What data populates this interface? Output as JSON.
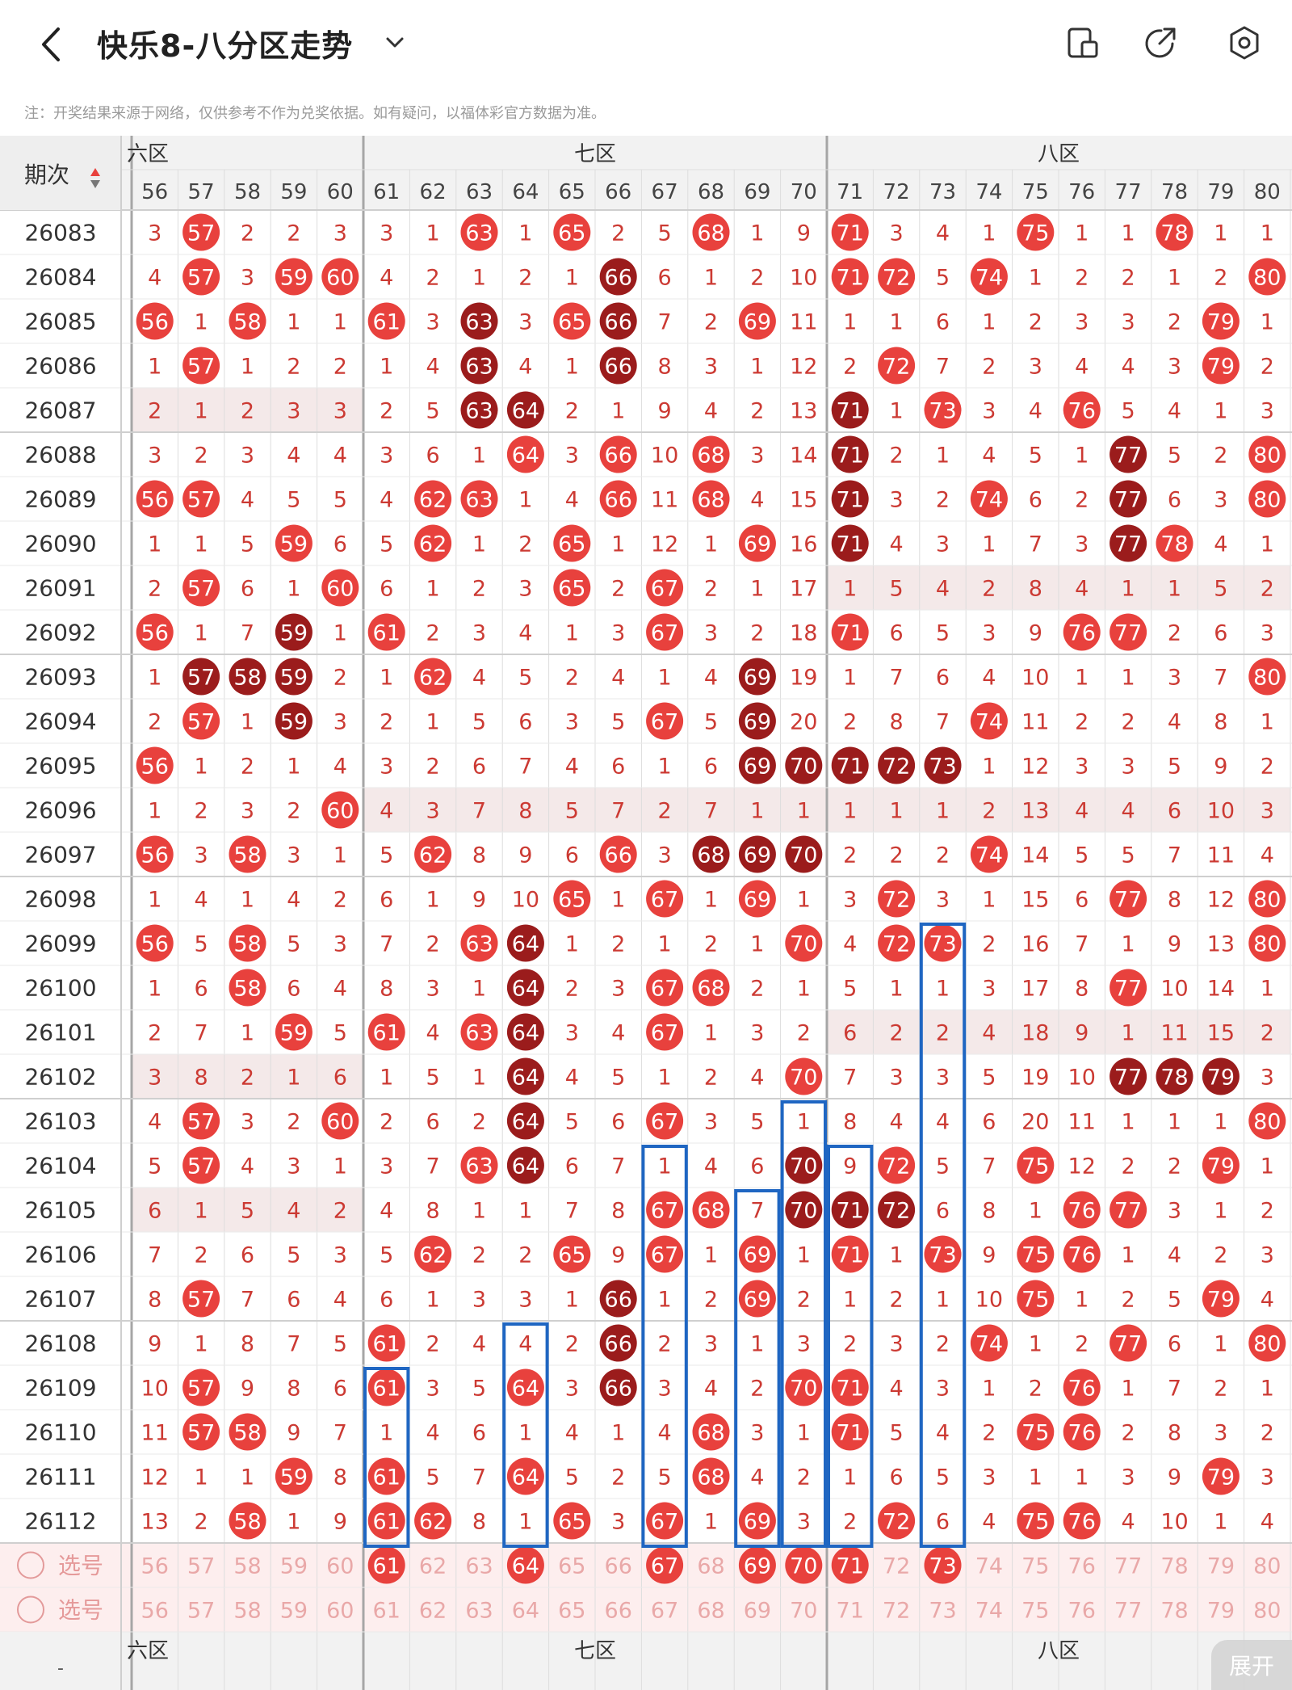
{
  "header": {
    "title": "快乐8-八分区走势"
  },
  "note": "注：开奖结果来源于网络，仅供参考不作为兑奖依据。如有疑问，以福体彩官方数据为准。",
  "table": {
    "period_header": "期次",
    "zones": [
      {
        "label": "六区",
        "display": "六区"
      },
      {
        "label": "七区",
        "display": "七区"
      },
      {
        "label": "八区",
        "display": "八区"
      }
    ],
    "columns": [
      "56",
      "57",
      "58",
      "59",
      "60",
      "61",
      "62",
      "63",
      "64",
      "65",
      "66",
      "67",
      "68",
      "69",
      "70",
      "71",
      "72",
      "73",
      "74",
      "75",
      "76",
      "77",
      "78",
      "79",
      "80"
    ],
    "periods": [
      "26083",
      "26084",
      "26085",
      "26086",
      "26087",
      "26088",
      "26089",
      "26090",
      "26091",
      "26092",
      "26093",
      "26094",
      "26095",
      "26096",
      "26097",
      "26098",
      "26099",
      "26100",
      "26101",
      "26102",
      "26103",
      "26104",
      "26105",
      "26106",
      "26107",
      "26108",
      "26109",
      "26110",
      "26111",
      "26112"
    ],
    "rows": [
      [
        "3",
        "57",
        "2",
        "2",
        "3",
        "3",
        "1",
        "63",
        "1",
        "65",
        "2",
        "5",
        "68",
        "1",
        "9",
        "71",
        "3",
        "4",
        "1",
        "75",
        "1",
        "1",
        "78",
        "1",
        "1"
      ],
      [
        "4",
        "57",
        "3",
        "59",
        "60",
        "4",
        "2",
        "1",
        "2",
        "1",
        "66",
        "6",
        "1",
        "2",
        "10",
        "71",
        "72",
        "5",
        "74",
        "1",
        "2",
        "2",
        "1",
        "2",
        "80"
      ],
      [
        "56",
        "1",
        "58",
        "1",
        "1",
        "61",
        "3",
        "63",
        "3",
        "65",
        "66",
        "7",
        "2",
        "69",
        "11",
        "1",
        "1",
        "6",
        "1",
        "2",
        "3",
        "3",
        "2",
        "79",
        "1"
      ],
      [
        "1",
        "57",
        "1",
        "2",
        "2",
        "1",
        "4",
        "63",
        "4",
        "1",
        "66",
        "8",
        "3",
        "1",
        "12",
        "2",
        "72",
        "7",
        "2",
        "3",
        "4",
        "4",
        "3",
        "79",
        "2"
      ],
      [
        "2",
        "1",
        "2",
        "3",
        "3",
        "2",
        "5",
        "63",
        "64",
        "2",
        "1",
        "9",
        "4",
        "2",
        "13",
        "71",
        "1",
        "73",
        "3",
        "4",
        "76",
        "5",
        "4",
        "1",
        "3"
      ],
      [
        "3",
        "2",
        "3",
        "4",
        "4",
        "3",
        "6",
        "1",
        "64",
        "3",
        "66",
        "10",
        "68",
        "3",
        "14",
        "71",
        "2",
        "1",
        "4",
        "5",
        "1",
        "77",
        "5",
        "2",
        "80"
      ],
      [
        "56",
        "57",
        "4",
        "5",
        "5",
        "4",
        "62",
        "63",
        "1",
        "4",
        "66",
        "11",
        "68",
        "4",
        "15",
        "71",
        "3",
        "2",
        "74",
        "6",
        "2",
        "77",
        "6",
        "3",
        "80"
      ],
      [
        "1",
        "1",
        "5",
        "59",
        "6",
        "5",
        "62",
        "1",
        "2",
        "65",
        "1",
        "12",
        "1",
        "69",
        "16",
        "71",
        "4",
        "3",
        "1",
        "7",
        "3",
        "77",
        "78",
        "4",
        "1"
      ],
      [
        "2",
        "57",
        "6",
        "1",
        "60",
        "6",
        "1",
        "2",
        "3",
        "65",
        "2",
        "67",
        "2",
        "1",
        "17",
        "1",
        "5",
        "4",
        "2",
        "8",
        "4",
        "1",
        "1",
        "5",
        "2"
      ],
      [
        "56",
        "1",
        "7",
        "59",
        "1",
        "61",
        "2",
        "3",
        "4",
        "1",
        "3",
        "67",
        "3",
        "2",
        "18",
        "71",
        "6",
        "5",
        "3",
        "9",
        "76",
        "77",
        "2",
        "6",
        "3"
      ],
      [
        "1",
        "57",
        "58",
        "59",
        "2",
        "1",
        "62",
        "4",
        "5",
        "2",
        "4",
        "1",
        "4",
        "69",
        "19",
        "1",
        "7",
        "6",
        "4",
        "10",
        "1",
        "1",
        "3",
        "7",
        "80"
      ],
      [
        "2",
        "57",
        "1",
        "59",
        "3",
        "2",
        "1",
        "5",
        "6",
        "3",
        "5",
        "67",
        "5",
        "69",
        "20",
        "2",
        "8",
        "7",
        "74",
        "11",
        "2",
        "2",
        "4",
        "8",
        "1"
      ],
      [
        "56",
        "1",
        "2",
        "1",
        "4",
        "3",
        "2",
        "6",
        "7",
        "4",
        "6",
        "1",
        "6",
        "69",
        "70",
        "71",
        "72",
        "73",
        "1",
        "12",
        "3",
        "3",
        "5",
        "9",
        "2"
      ],
      [
        "1",
        "2",
        "3",
        "2",
        "60",
        "4",
        "3",
        "7",
        "8",
        "5",
        "7",
        "2",
        "7",
        "1",
        "1",
        "1",
        "1",
        "1",
        "2",
        "13",
        "4",
        "4",
        "6",
        "10",
        "3"
      ],
      [
        "56",
        "3",
        "58",
        "3",
        "1",
        "5",
        "62",
        "8",
        "9",
        "6",
        "66",
        "3",
        "68",
        "69",
        "70",
        "2",
        "2",
        "2",
        "74",
        "14",
        "5",
        "5",
        "7",
        "11",
        "4"
      ],
      [
        "1",
        "4",
        "1",
        "4",
        "2",
        "6",
        "1",
        "9",
        "10",
        "65",
        "1",
        "67",
        "1",
        "69",
        "1",
        "3",
        "72",
        "3",
        "1",
        "15",
        "6",
        "77",
        "8",
        "12",
        "80"
      ],
      [
        "56",
        "5",
        "58",
        "5",
        "3",
        "7",
        "2",
        "63",
        "64",
        "1",
        "2",
        "1",
        "2",
        "1",
        "70",
        "4",
        "72",
        "73",
        "2",
        "16",
        "7",
        "1",
        "9",
        "13",
        "80"
      ],
      [
        "1",
        "6",
        "58",
        "6",
        "4",
        "8",
        "3",
        "1",
        "64",
        "2",
        "3",
        "67",
        "68",
        "2",
        "1",
        "5",
        "1",
        "1",
        "3",
        "17",
        "8",
        "77",
        "10",
        "14",
        "1"
      ],
      [
        "2",
        "7",
        "1",
        "59",
        "5",
        "61",
        "4",
        "63",
        "64",
        "3",
        "4",
        "67",
        "1",
        "3",
        "2",
        "6",
        "2",
        "2",
        "4",
        "18",
        "9",
        "1",
        "11",
        "15",
        "2"
      ],
      [
        "3",
        "8",
        "2",
        "1",
        "6",
        "1",
        "5",
        "1",
        "64",
        "4",
        "5",
        "1",
        "2",
        "4",
        "70",
        "7",
        "3",
        "3",
        "5",
        "19",
        "10",
        "77",
        "78",
        "79",
        "3"
      ],
      [
        "4",
        "57",
        "3",
        "2",
        "60",
        "2",
        "6",
        "2",
        "64",
        "5",
        "6",
        "67",
        "3",
        "5",
        "1",
        "8",
        "4",
        "4",
        "6",
        "20",
        "11",
        "1",
        "1",
        "1",
        "80"
      ],
      [
        "5",
        "57",
        "4",
        "3",
        "1",
        "3",
        "7",
        "63",
        "64",
        "6",
        "7",
        "1",
        "4",
        "6",
        "70",
        "9",
        "72",
        "5",
        "7",
        "75",
        "12",
        "2",
        "2",
        "79",
        "1"
      ],
      [
        "6",
        "1",
        "5",
        "4",
        "2",
        "4",
        "8",
        "1",
        "1",
        "7",
        "8",
        "67",
        "68",
        "7",
        "70",
        "71",
        "72",
        "6",
        "8",
        "1",
        "76",
        "77",
        "3",
        "1",
        "2"
      ],
      [
        "7",
        "2",
        "6",
        "5",
        "3",
        "5",
        "62",
        "2",
        "2",
        "65",
        "9",
        "67",
        "1",
        "69",
        "1",
        "71",
        "1",
        "73",
        "9",
        "75",
        "76",
        "1",
        "4",
        "2",
        "3"
      ],
      [
        "8",
        "57",
        "7",
        "6",
        "4",
        "6",
        "1",
        "3",
        "3",
        "1",
        "66",
        "1",
        "2",
        "69",
        "2",
        "1",
        "2",
        "1",
        "10",
        "75",
        "1",
        "2",
        "5",
        "79",
        "4"
      ],
      [
        "9",
        "1",
        "8",
        "7",
        "5",
        "61",
        "2",
        "4",
        "4",
        "2",
        "66",
        "2",
        "3",
        "1",
        "3",
        "2",
        "3",
        "2",
        "74",
        "1",
        "2",
        "77",
        "6",
        "1",
        "80"
      ],
      [
        "10",
        "57",
        "9",
        "8",
        "6",
        "61",
        "3",
        "5",
        "64",
        "3",
        "66",
        "3",
        "4",
        "2",
        "70",
        "71",
        "4",
        "3",
        "1",
        "2",
        "76",
        "1",
        "7",
        "2",
        "1"
      ],
      [
        "11",
        "57",
        "58",
        "9",
        "7",
        "1",
        "4",
        "6",
        "1",
        "4",
        "1",
        "4",
        "68",
        "3",
        "1",
        "71",
        "5",
        "4",
        "2",
        "75",
        "76",
        "2",
        "8",
        "3",
        "2"
      ],
      [
        "12",
        "1",
        "1",
        "59",
        "8",
        "61",
        "5",
        "7",
        "64",
        "5",
        "2",
        "5",
        "68",
        "4",
        "2",
        "1",
        "6",
        "5",
        "3",
        "1",
        "1",
        "3",
        "9",
        "79",
        "3"
      ],
      [
        "13",
        "2",
        "58",
        "1",
        "9",
        "61",
        "62",
        "8",
        "1",
        "65",
        "3",
        "67",
        "1",
        "69",
        "3",
        "2",
        "72",
        "6",
        "4",
        "75",
        "76",
        "4",
        "10",
        "1",
        "4"
      ]
    ],
    "dark_cells": [
      [
        1,
        10
      ],
      [
        2,
        7
      ],
      [
        2,
        10
      ],
      [
        3,
        7
      ],
      [
        3,
        10
      ],
      [
        4,
        7
      ],
      [
        4,
        8
      ],
      [
        4,
        15
      ],
      [
        5,
        15
      ],
      [
        5,
        21
      ],
      [
        6,
        15
      ],
      [
        6,
        21
      ],
      [
        7,
        15
      ],
      [
        7,
        21
      ],
      [
        9,
        3
      ],
      [
        10,
        1
      ],
      [
        10,
        2
      ],
      [
        10,
        3
      ],
      [
        10,
        13
      ],
      [
        11,
        3
      ],
      [
        11,
        13
      ],
      [
        12,
        13
      ],
      [
        12,
        14
      ],
      [
        12,
        15
      ],
      [
        12,
        16
      ],
      [
        12,
        17
      ],
      [
        14,
        12
      ],
      [
        14,
        13
      ],
      [
        14,
        14
      ],
      [
        16,
        8
      ],
      [
        17,
        8
      ],
      [
        18,
        8
      ],
      [
        19,
        8
      ],
      [
        19,
        21
      ],
      [
        19,
        22
      ],
      [
        19,
        23
      ],
      [
        20,
        8
      ],
      [
        21,
        8
      ],
      [
        21,
        14
      ],
      [
        22,
        14
      ],
      [
        22,
        15
      ],
      [
        22,
        16
      ],
      [
        24,
        10
      ],
      [
        25,
        10
      ],
      [
        26,
        10
      ]
    ],
    "select_rows": [
      {
        "label": "选号",
        "values": [
          "56",
          "57",
          "58",
          "59",
          "60",
          "61",
          "62",
          "63",
          "64",
          "65",
          "66",
          "67",
          "68",
          "69",
          "70",
          "71",
          "72",
          "73",
          "74",
          "75",
          "76",
          "77",
          "78",
          "79",
          "80"
        ],
        "selected": [
          "61",
          "64",
          "67",
          "69",
          "70",
          "71",
          "73"
        ]
      },
      {
        "label": "选号",
        "values": [
          "56",
          "57",
          "58",
          "59",
          "60",
          "61",
          "62",
          "63",
          "64",
          "65",
          "66",
          "67",
          "68",
          "69",
          "70",
          "71",
          "72",
          "73",
          "74",
          "75",
          "76",
          "77",
          "78",
          "79",
          "80"
        ],
        "selected": []
      }
    ],
    "footer_dash": "-"
  },
  "expand_label": "展开",
  "colors": {
    "ball": "#e8413d",
    "ball_dark": "#9b1c1c",
    "miss_text": "#cc3a33",
    "frame": "#1f66c2",
    "zone_divider": "#a6a6a6"
  },
  "icons": [
    "back-icon",
    "chevron-down-icon",
    "tablet-layout-icon",
    "share-icon",
    "settings-icon",
    "sort-icon",
    "radio-circle-icon"
  ]
}
